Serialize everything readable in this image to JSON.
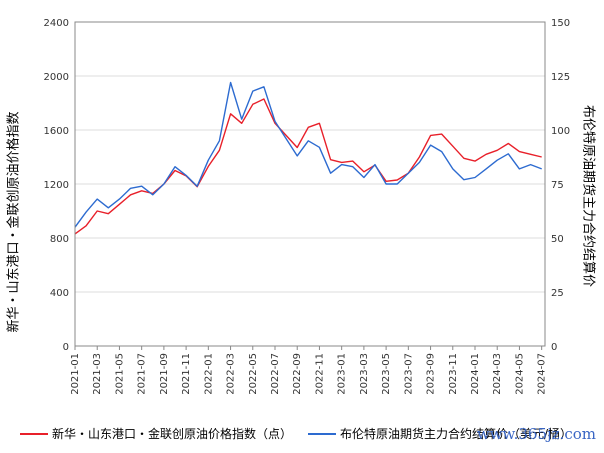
{
  "chart_data": {
    "type": "line",
    "title": "",
    "ylabel": "新华・山东港口・金联创原油价格指数",
    "ylabel_right": "布伦特原油期货主力合约结算价",
    "ylim": [
      0,
      2400
    ],
    "ylim_right": [
      0,
      150
    ],
    "yticks": [
      "0",
      "400",
      "800",
      "1200",
      "1600",
      "2000",
      "2400"
    ],
    "yticks_right": [
      "0",
      "25",
      "50",
      "75",
      "100",
      "125",
      "150"
    ],
    "xticks": [
      "2021-01",
      "2021-03",
      "2021-05",
      "2021-07",
      "2021-09",
      "2021-11",
      "2022-01",
      "2022-03",
      "2022-05",
      "2022-07",
      "2022-09",
      "2022-11",
      "2023-01",
      "2023-03",
      "2023-05",
      "2023-07",
      "2023-09",
      "2023-11",
      "2024-01",
      "2024-03",
      "2024-05",
      "2024-07"
    ],
    "grid": "horizontal",
    "legend_position": "bottom",
    "series": [
      {
        "name": "新华・山东港口・金联创原油价格指数（点）",
        "color": "#e8202a",
        "axis": "left",
        "x": [
          "2021-01",
          "2021-02",
          "2021-03",
          "2021-04",
          "2021-05",
          "2021-06",
          "2021-07",
          "2021-08",
          "2021-09",
          "2021-10",
          "2021-11",
          "2021-12",
          "2022-01",
          "2022-02",
          "2022-03",
          "2022-04",
          "2022-05",
          "2022-06",
          "2022-07",
          "2022-08",
          "2022-09",
          "2022-10",
          "2022-11",
          "2022-12",
          "2023-01",
          "2023-02",
          "2023-03",
          "2023-04",
          "2023-05",
          "2023-06",
          "2023-07",
          "2023-08",
          "2023-09",
          "2023-10",
          "2023-11",
          "2023-12",
          "2024-01",
          "2024-02",
          "2024-03",
          "2024-04",
          "2024-05",
          "2024-06",
          "2024-07"
        ],
        "values": [
          830,
          890,
          1000,
          980,
          1050,
          1120,
          1150,
          1130,
          1200,
          1300,
          1260,
          1180,
          1330,
          1450,
          1720,
          1650,
          1790,
          1830,
          1650,
          1560,
          1470,
          1620,
          1650,
          1380,
          1360,
          1370,
          1290,
          1340,
          1220,
          1230,
          1280,
          1400,
          1560,
          1570,
          1480,
          1390,
          1370,
          1420,
          1450,
          1500,
          1440,
          1420,
          1400
        ]
      },
      {
        "name": "布伦特原油期货主力合约结算价（美元/桶）",
        "color": "#2d6bd0",
        "axis": "right",
        "x": [
          "2021-01",
          "2021-02",
          "2021-03",
          "2021-04",
          "2021-05",
          "2021-06",
          "2021-07",
          "2021-08",
          "2021-09",
          "2021-10",
          "2021-11",
          "2021-12",
          "2022-01",
          "2022-02",
          "2022-03",
          "2022-04",
          "2022-05",
          "2022-06",
          "2022-07",
          "2022-08",
          "2022-09",
          "2022-10",
          "2022-11",
          "2022-12",
          "2023-01",
          "2023-02",
          "2023-03",
          "2023-04",
          "2023-05",
          "2023-06",
          "2023-07",
          "2023-08",
          "2023-09",
          "2023-10",
          "2023-11",
          "2023-12",
          "2024-01",
          "2024-02",
          "2024-03",
          "2024-04",
          "2024-05",
          "2024-06",
          "2024-07"
        ],
        "values": [
          55,
          62,
          68,
          64,
          68,
          73,
          74,
          70,
          75,
          83,
          79,
          74,
          86,
          95,
          122,
          105,
          118,
          120,
          104,
          96,
          88,
          95,
          92,
          80,
          84,
          83,
          78,
          84,
          75,
          75,
          80,
          85,
          93,
          90,
          82,
          77,
          78,
          82,
          86,
          89,
          82,
          84,
          82
        ]
      }
    ]
  },
  "legend": {
    "series1": "新华・山东港口・金联创原油价格指数（点）",
    "series2": "布伦特原油期货主力合约结算价（美元/桶）"
  },
  "watermark": "www.365jz.com"
}
